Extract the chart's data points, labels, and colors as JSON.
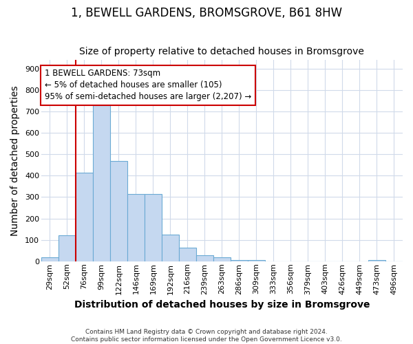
{
  "title": "1, BEWELL GARDENS, BROMSGROVE, B61 8HW",
  "subtitle": "Size of property relative to detached houses in Bromsgrove",
  "xlabel": "Distribution of detached houses by size in Bromsgrove",
  "ylabel": "Number of detached properties",
  "footer_line1": "Contains HM Land Registry data © Crown copyright and database right 2024.",
  "footer_line2": "Contains public sector information licensed under the Open Government Licence v3.0.",
  "categories": [
    "29sqm",
    "52sqm",
    "76sqm",
    "99sqm",
    "122sqm",
    "146sqm",
    "169sqm",
    "192sqm",
    "216sqm",
    "239sqm",
    "263sqm",
    "286sqm",
    "309sqm",
    "333sqm",
    "356sqm",
    "379sqm",
    "403sqm",
    "426sqm",
    "449sqm",
    "473sqm",
    "496sqm"
  ],
  "values": [
    18,
    120,
    415,
    730,
    470,
    315,
    315,
    125,
    65,
    28,
    18,
    7,
    7,
    0,
    0,
    0,
    0,
    0,
    0,
    7,
    0
  ],
  "bar_color": "#c5d8f0",
  "bar_edge_color": "#6aaad4",
  "grid_color": "#d0daea",
  "background_color": "#ffffff",
  "vline_color": "#cc0000",
  "annotation_text": "1 BEWELL GARDENS: 73sqm\n← 5% of detached houses are smaller (105)\n95% of semi-detached houses are larger (2,207) →",
  "ylim": [
    0,
    940
  ],
  "yticks": [
    0,
    100,
    200,
    300,
    400,
    500,
    600,
    700,
    800,
    900
  ],
  "vline_bar_index": 2,
  "title_fontsize": 12,
  "subtitle_fontsize": 10,
  "axis_label_fontsize": 10,
  "tick_fontsize": 8,
  "annotation_fontsize": 8.5
}
